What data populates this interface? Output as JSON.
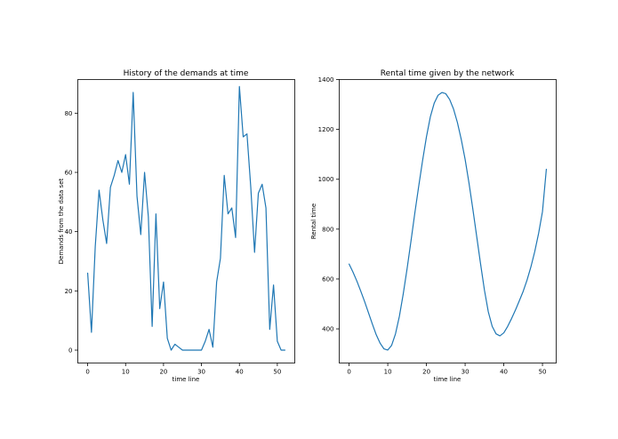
{
  "chart_data": [
    {
      "type": "line",
      "title": "History of the demands at time",
      "xlabel": "time line",
      "ylabel": "Demands from the data set",
      "xlim": [
        -2.6,
        54.6
      ],
      "ylim": [
        -4.35,
        91.35
      ],
      "xticks": [
        0,
        10,
        20,
        30,
        40,
        50
      ],
      "yticks": [
        0,
        20,
        40,
        60,
        80
      ],
      "xtick_labels": [
        "0",
        "10",
        "20",
        "30",
        "40",
        "50"
      ],
      "ytick_labels": [
        "0",
        "20",
        "40",
        "60",
        "80"
      ],
      "grid": false,
      "color": "#1f77b4",
      "x": [
        0,
        1,
        2,
        3,
        4,
        5,
        6,
        7,
        8,
        9,
        10,
        11,
        12,
        13,
        14,
        15,
        16,
        17,
        18,
        19,
        20,
        21,
        22,
        23,
        24,
        25,
        26,
        27,
        28,
        29,
        30,
        31,
        32,
        33,
        34,
        35,
        36,
        37,
        38,
        39,
        40,
        41,
        42,
        43,
        44,
        45,
        46,
        47,
        48,
        49,
        50,
        51,
        52
      ],
      "y": [
        26,
        6,
        35,
        54,
        44,
        36,
        55,
        59,
        64,
        60,
        66,
        56,
        87,
        52,
        39,
        60,
        45,
        8,
        46,
        14,
        23,
        4,
        0,
        2,
        1,
        0,
        0,
        0,
        0,
        0,
        0,
        3,
        7,
        1,
        23,
        31,
        59,
        46,
        48,
        38,
        89,
        72,
        73,
        55,
        33,
        53,
        56,
        48,
        7,
        22,
        3,
        0,
        0
      ]
    },
    {
      "type": "line",
      "title": "Rental time given by the network",
      "xlabel": "time line",
      "ylabel": "Rental time",
      "xlim": [
        -2.55,
        53.55
      ],
      "ylim": [
        263,
        1400
      ],
      "xticks": [
        0,
        10,
        20,
        30,
        40,
        50
      ],
      "yticks": [
        400,
        600,
        800,
        1000,
        1200,
        1400
      ],
      "xtick_labels": [
        "0",
        "10",
        "20",
        "30",
        "40",
        "50"
      ],
      "ytick_labels": [
        "400",
        "600",
        "800",
        "1000",
        "1200",
        "1400"
      ],
      "grid": false,
      "color": "#1f77b4",
      "x": [
        0,
        1,
        2,
        3,
        4,
        5,
        6,
        7,
        8,
        9,
        10,
        11,
        12,
        13,
        14,
        15,
        16,
        17,
        18,
        19,
        20,
        21,
        22,
        23,
        24,
        25,
        26,
        27,
        28,
        29,
        30,
        31,
        32,
        33,
        34,
        35,
        36,
        37,
        38,
        39,
        40,
        41,
        42,
        43,
        44,
        45,
        46,
        47,
        48,
        49,
        50,
        51
      ],
      "y": [
        660,
        628,
        592,
        552,
        510,
        465,
        420,
        377,
        343,
        320,
        315,
        334,
        380,
        450,
        540,
        642,
        752,
        865,
        972,
        1075,
        1170,
        1250,
        1305,
        1337,
        1348,
        1343,
        1320,
        1282,
        1228,
        1160,
        1080,
        985,
        880,
        770,
        660,
        555,
        468,
        410,
        380,
        372,
        384,
        410,
        441,
        475,
        512,
        550,
        595,
        648,
        710,
        783,
        870,
        1040
      ]
    }
  ]
}
